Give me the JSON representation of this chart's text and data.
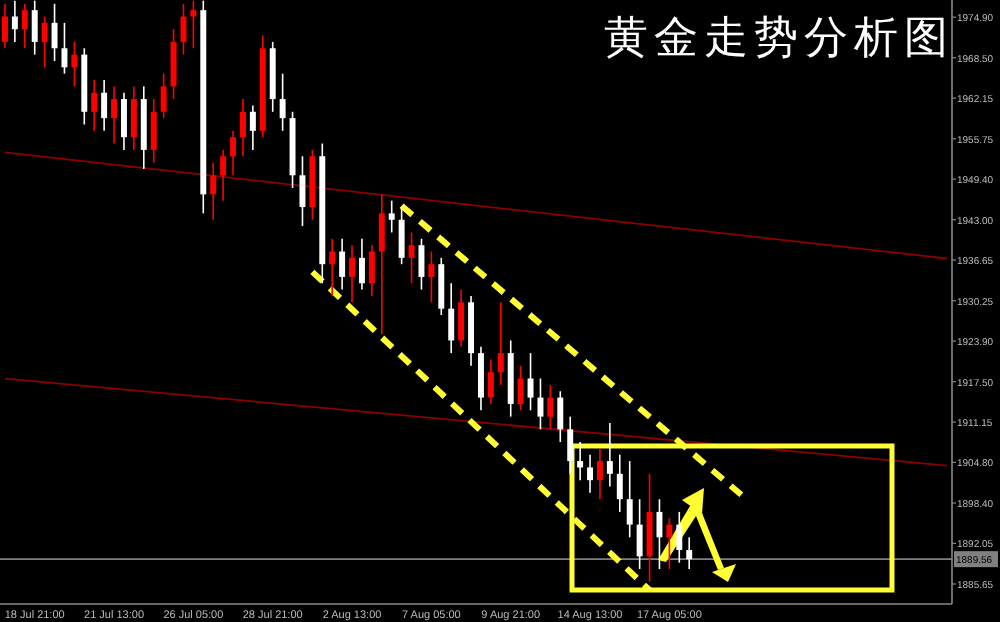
{
  "chart_data": {
    "type": "candlestick",
    "title": "黄金走势分析图",
    "categories": [
      null,
      null,
      null,
      "18 Jul 21:00",
      null,
      null,
      null,
      null,
      null,
      null,
      null,
      "21 Jul 13:00",
      null,
      null,
      null,
      null,
      null,
      null,
      null,
      "26 Jul 05:00",
      null,
      null,
      null,
      null,
      null,
      null,
      null,
      "28 Jul 21:00",
      null,
      null,
      null,
      null,
      null,
      null,
      null,
      "2 Aug 13:00",
      null,
      null,
      null,
      null,
      null,
      null,
      null,
      "7 Aug 05:00",
      null,
      null,
      null,
      null,
      null,
      null,
      null,
      "9 Aug 21:00",
      null,
      null,
      null,
      null,
      null,
      null,
      null,
      "14 Aug 13:00",
      null,
      null,
      null,
      null,
      null,
      null,
      null,
      "17 Aug 05:00",
      null,
      null,
      null,
      null,
      null,
      null,
      null,
      null,
      null,
      null,
      null,
      null,
      null,
      null,
      null,
      null,
      null,
      null,
      null,
      null,
      null,
      null,
      null,
      null,
      null,
      null,
      null,
      null
    ],
    "ohlc": [
      [
        1971,
        1977,
        1970,
        1975
      ],
      [
        1975,
        1977.5,
        1971,
        1973
      ],
      [
        1973,
        1977,
        1970,
        1976
      ],
      [
        1976,
        1977.5,
        1969,
        1971
      ],
      [
        1971,
        1975,
        1967,
        1974
      ],
      [
        1974,
        1977,
        1968,
        1970
      ],
      [
        1970,
        1974,
        1966,
        1967
      ],
      [
        1967,
        1971,
        1964,
        1969
      ],
      [
        1969,
        1970,
        1958,
        1960
      ],
      [
        1960,
        1965,
        1957,
        1963
      ],
      [
        1963,
        1965,
        1957,
        1959
      ],
      [
        1959,
        1964,
        1955,
        1962
      ],
      [
        1962,
        1963,
        1954,
        1956
      ],
      [
        1956,
        1964,
        1954,
        1962
      ],
      [
        1962,
        1964,
        1951,
        1954
      ],
      [
        1954,
        1962,
        1952,
        1960
      ],
      [
        1960,
        1966,
        1959,
        1964
      ],
      [
        1964,
        1973,
        1962,
        1971
      ],
      [
        1971,
        1977,
        1969,
        1975
      ],
      [
        1975,
        1977.5,
        1970,
        1976
      ],
      [
        1976,
        1977.5,
        1944,
        1947
      ],
      [
        1947,
        1952,
        1943,
        1950
      ],
      [
        1950,
        1954,
        1946,
        1953
      ],
      [
        1953,
        1957,
        1950,
        1956
      ],
      [
        1956,
        1962,
        1953,
        1960
      ],
      [
        1960,
        1961,
        1954,
        1957
      ],
      [
        1957,
        1972,
        1956,
        1970
      ],
      [
        1970,
        1971,
        1960,
        1962
      ],
      [
        1962,
        1966,
        1957,
        1959
      ],
      [
        1959,
        1960,
        1948,
        1950
      ],
      [
        1950,
        1953,
        1942,
        1945
      ],
      [
        1945,
        1954,
        1943,
        1953
      ],
      [
        1953,
        1955,
        1933,
        1936
      ],
      [
        1936,
        1940,
        1931,
        1938
      ],
      [
        1938,
        1940,
        1932,
        1934
      ],
      [
        1934,
        1939,
        1930,
        1937
      ],
      [
        1937,
        1940,
        1932,
        1933
      ],
      [
        1933,
        1939,
        1931,
        1938
      ],
      [
        1938,
        1947,
        1925,
        1944
      ],
      [
        1944,
        1946,
        1941,
        1943
      ],
      [
        1943,
        1945,
        1936,
        1937
      ],
      [
        1937,
        1941,
        1933,
        1939
      ],
      [
        1939,
        1940,
        1932,
        1934
      ],
      [
        1934,
        1938,
        1930,
        1936
      ],
      [
        1936,
        1937,
        1928,
        1929
      ],
      [
        1929,
        1933,
        1922,
        1924
      ],
      [
        1924,
        1932,
        1923,
        1930
      ],
      [
        1930,
        1931,
        1920,
        1922
      ],
      [
        1922,
        1923,
        1913,
        1915
      ],
      [
        1915,
        1921,
        1914,
        1919
      ],
      [
        1919,
        1930,
        1917,
        1922
      ],
      [
        1922,
        1924,
        1912,
        1914
      ],
      [
        1914,
        1920,
        1913,
        1918
      ],
      [
        1918,
        1922,
        1913,
        1915
      ],
      [
        1915,
        1918,
        1910,
        1912
      ],
      [
        1912,
        1917,
        1910,
        1915
      ],
      [
        1915,
        1916,
        1908,
        1910
      ],
      [
        1910,
        1912,
        1903,
        1905
      ],
      [
        1905,
        1908,
        1902,
        1904
      ],
      [
        1904,
        1906,
        1900,
        1902
      ],
      [
        1902,
        1907,
        1899,
        1905
      ],
      [
        1905,
        1911,
        1901,
        1903
      ],
      [
        1903,
        1906,
        1897,
        1899
      ],
      [
        1899,
        1905,
        1893,
        1895
      ],
      [
        1895,
        1899,
        1888,
        1890
      ],
      [
        1890,
        1903,
        1886,
        1897
      ],
      [
        1897,
        1899,
        1888,
        1893
      ],
      [
        1893,
        1896,
        1888,
        1895
      ],
      [
        1895,
        1897,
        1889,
        1891
      ],
      [
        1891,
        1893,
        1888,
        1889.56
      ],
      null,
      null,
      null,
      null,
      null,
      null,
      null,
      null,
      null,
      null,
      null,
      null,
      null,
      null,
      null,
      null,
      null,
      null,
      null,
      null,
      null,
      null,
      null,
      null,
      null,
      null
    ],
    "colors": [
      "#ff0000",
      "#ffffff",
      "#ff0000",
      "#ffffff",
      "#ff0000",
      "#ffffff",
      "#ffffff",
      "#ff0000",
      "#ffffff",
      "#ff0000",
      "#ffffff",
      "#ff0000",
      "#ffffff",
      "#ff0000",
      "#ffffff",
      "#ff0000",
      "#ff0000",
      "#ff0000",
      "#ff0000",
      "#ff0000",
      "#ffffff",
      "#ff0000",
      "#ff0000",
      "#ff0000",
      "#ff0000",
      "#ffffff",
      "#ff0000",
      "#ffffff",
      "#ffffff",
      "#ffffff",
      "#ffffff",
      "#ff0000",
      "#ffffff",
      "#ff0000",
      "#ffffff",
      "#ff0000",
      "#ffffff",
      "#ff0000",
      "#ff0000",
      "#ffffff",
      "#ffffff",
      "#ff0000",
      "#ffffff",
      "#ff0000",
      "#ffffff",
      "#ffffff",
      "#ff0000",
      "#ffffff",
      "#ffffff",
      "#ff0000",
      "#ff0000",
      "#ffffff",
      "#ff0000",
      "#ffffff",
      "#ffffff",
      "#ff0000",
      "#ffffff",
      "#ffffff",
      "#ffffff",
      "#ffffff",
      "#ff0000",
      "#ffffff",
      "#ffffff",
      "#ffffff",
      "#ffffff",
      "#ff0000",
      "#ffffff",
      "#ff0000",
      "#ffffff",
      "#ffffff",
      null,
      null,
      null,
      null,
      null,
      null,
      null,
      null,
      null,
      null,
      null,
      null,
      null,
      null,
      null,
      null,
      null,
      null,
      null,
      null,
      null,
      null,
      null,
      null,
      null,
      null
    ],
    "series": [
      {
        "type": "line",
        "values": [
          1953.6,
          null,
          null,
          null,
          null,
          null,
          null,
          null,
          null,
          null,
          null,
          null,
          null,
          null,
          null,
          null,
          null,
          null,
          null,
          null,
          null,
          null,
          null,
          null,
          null,
          null,
          null,
          null,
          null,
          null,
          null,
          null,
          null,
          null,
          null,
          null,
          null,
          null,
          null,
          null,
          null,
          null,
          null,
          null,
          null,
          null,
          null,
          null,
          null,
          null,
          null,
          null,
          null,
          null,
          null,
          null,
          null,
          null,
          null,
          null,
          null,
          null,
          null,
          null,
          null,
          null,
          null,
          null,
          null,
          null,
          null,
          null,
          null,
          null,
          null,
          null,
          null,
          null,
          null,
          null,
          null,
          null,
          null,
          null,
          null,
          null,
          null,
          null,
          null,
          null,
          null,
          null,
          null,
          null,
          null,
          1936.9
        ],
        "color": "#8b0000",
        "line_style": "solid"
      },
      {
        "type": "line",
        "values": [
          1918,
          null,
          null,
          null,
          null,
          null,
          null,
          null,
          null,
          null,
          null,
          null,
          null,
          null,
          null,
          null,
          null,
          null,
          null,
          null,
          null,
          null,
          null,
          null,
          null,
          null,
          null,
          null,
          null,
          null,
          null,
          null,
          null,
          null,
          null,
          null,
          null,
          null,
          null,
          null,
          null,
          null,
          null,
          null,
          null,
          null,
          null,
          null,
          null,
          null,
          null,
          null,
          null,
          null,
          null,
          null,
          null,
          null,
          null,
          null,
          null,
          null,
          null,
          null,
          null,
          null,
          null,
          null,
          null,
          null,
          null,
          null,
          null,
          null,
          null,
          null,
          null,
          null,
          null,
          null,
          null,
          null,
          null,
          null,
          null,
          null,
          null,
          null,
          null,
          null,
          null,
          null,
          null,
          null,
          null,
          1904.3
        ],
        "color": "#8b0000",
        "line_style": "solid"
      },
      {
        "type": "line",
        "values": [
          null,
          null,
          null,
          null,
          null,
          null,
          null,
          null,
          null,
          null,
          null,
          null,
          null,
          null,
          null,
          null,
          null,
          null,
          null,
          null,
          null,
          null,
          null,
          null,
          null,
          null,
          null,
          null,
          null,
          null,
          null,
          null,
          null,
          null,
          null,
          null,
          null,
          null,
          null,
          null,
          1945.2,
          null,
          null,
          null,
          null,
          null,
          null,
          null,
          null,
          null,
          null,
          null,
          null,
          null,
          null,
          null,
          null,
          null,
          null,
          null,
          null,
          null,
          null,
          null,
          null,
          null,
          null,
          null,
          null,
          null,
          null,
          null,
          null,
          null,
          null,
          1898.7,
          null,
          null,
          null,
          null,
          null,
          null,
          null,
          null,
          null,
          null,
          null,
          null,
          null,
          null,
          null,
          null,
          null,
          null,
          null,
          null
        ],
        "color": "#ffff33",
        "line_style": "dashed"
      },
      {
        "type": "line",
        "values": [
          null,
          null,
          null,
          null,
          null,
          null,
          null,
          null,
          null,
          null,
          null,
          null,
          null,
          null,
          null,
          null,
          null,
          null,
          null,
          null,
          null,
          null,
          null,
          null,
          null,
          null,
          null,
          null,
          null,
          null,
          null,
          1934.8,
          null,
          null,
          null,
          null,
          null,
          null,
          null,
          null,
          null,
          null,
          null,
          null,
          null,
          null,
          null,
          null,
          null,
          null,
          null,
          null,
          null,
          null,
          null,
          null,
          null,
          null,
          null,
          null,
          null,
          null,
          null,
          null,
          null,
          1884.7,
          null,
          null,
          null,
          null,
          null,
          null,
          null,
          null,
          null,
          null,
          null,
          null,
          null,
          null,
          null,
          null,
          null,
          null,
          null,
          null,
          null,
          null,
          null,
          null,
          null,
          null,
          null,
          null,
          null,
          null
        ],
        "color": "#ffff33",
        "line_style": "dashed"
      }
    ],
    "ref_lines": [
      {
        "axis": "y",
        "value": 1889.56,
        "label": "1889.56",
        "color": "#808080"
      }
    ],
    "ylim": [
      1882.5,
      1977.6
    ],
    "yticks": [
      {
        "value": 1974.9,
        "label": "1974.90"
      },
      {
        "value": 1968.5,
        "label": "1968.50"
      },
      {
        "value": 1962.15,
        "label": "1962.15"
      },
      {
        "value": 1955.75,
        "label": "1955.75"
      },
      {
        "value": 1949.4,
        "label": "1949.40"
      },
      {
        "value": 1943,
        "label": "1943.00"
      },
      {
        "value": 1936.65,
        "label": "1936.65"
      },
      {
        "value": 1930.25,
        "label": "1930.25"
      },
      {
        "value": 1923.9,
        "label": "1923.90"
      },
      {
        "value": 1917.5,
        "label": "1917.50"
      },
      {
        "value": 1911.15,
        "label": "1911.15"
      },
      {
        "value": 1904.8,
        "label": "1904.80"
      },
      {
        "value": 1898.4,
        "label": "1898.40"
      },
      {
        "value": 1892.05,
        "label": "1892.05"
      },
      {
        "value": 1885.65,
        "label": "1885.65"
      }
    ],
    "grid": false
  }
}
